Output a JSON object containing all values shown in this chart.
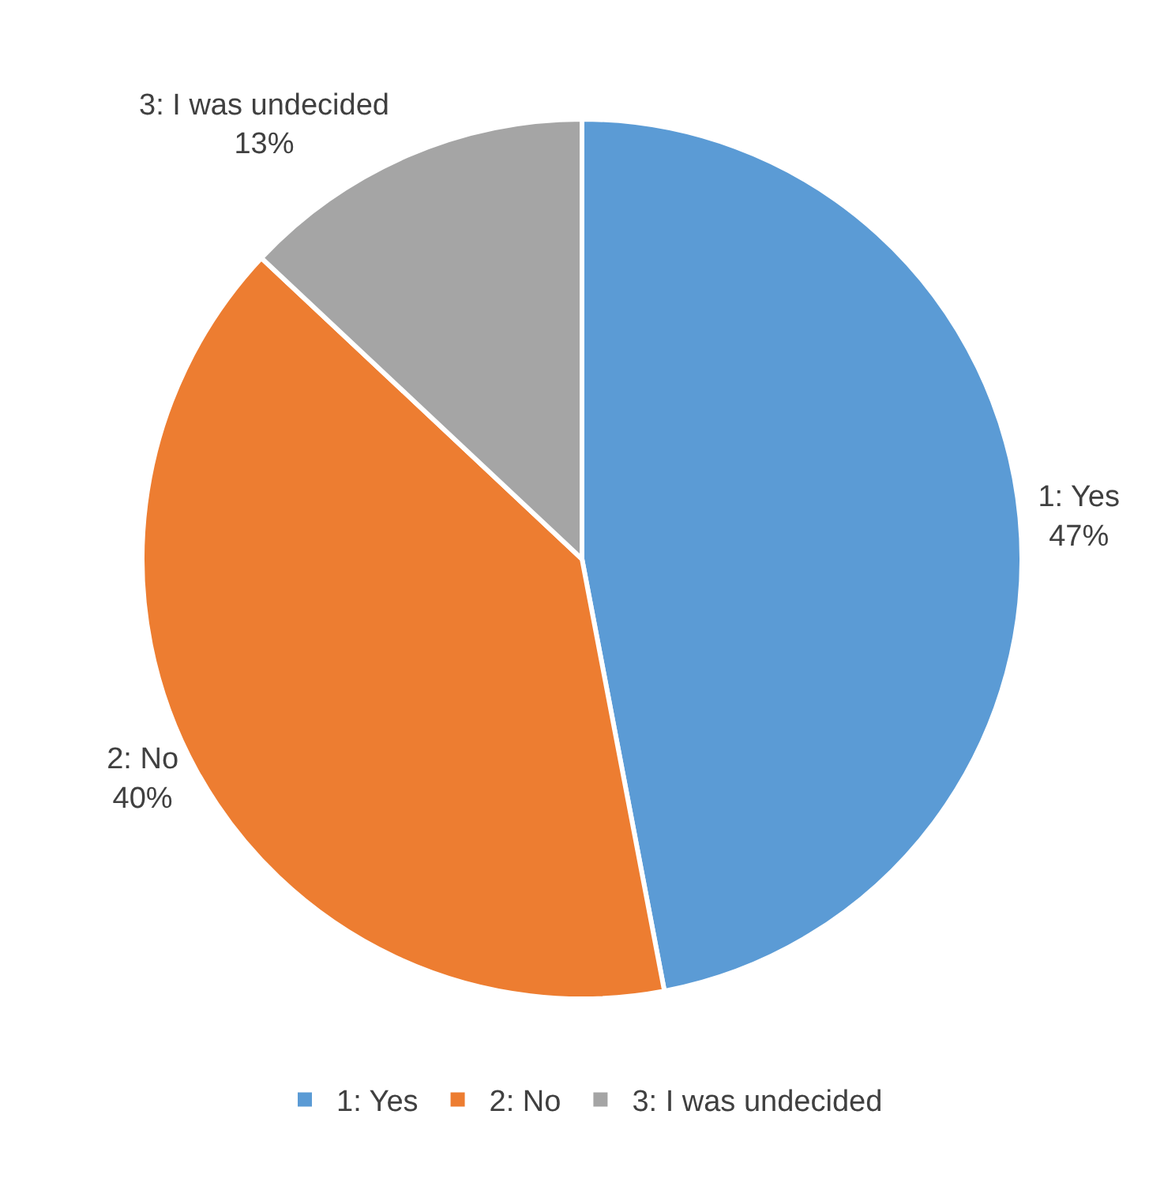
{
  "chart_data": {
    "type": "pie",
    "categories": [
      "1: Yes",
      "2: No",
      "3: I was undecided"
    ],
    "values": [
      47,
      40,
      13
    ],
    "value_labels": [
      "47%",
      "40%",
      "13%"
    ],
    "colors": [
      "#5b9bd5",
      "#ed7d31",
      "#a5a5a5"
    ],
    "legend": "bottom"
  }
}
